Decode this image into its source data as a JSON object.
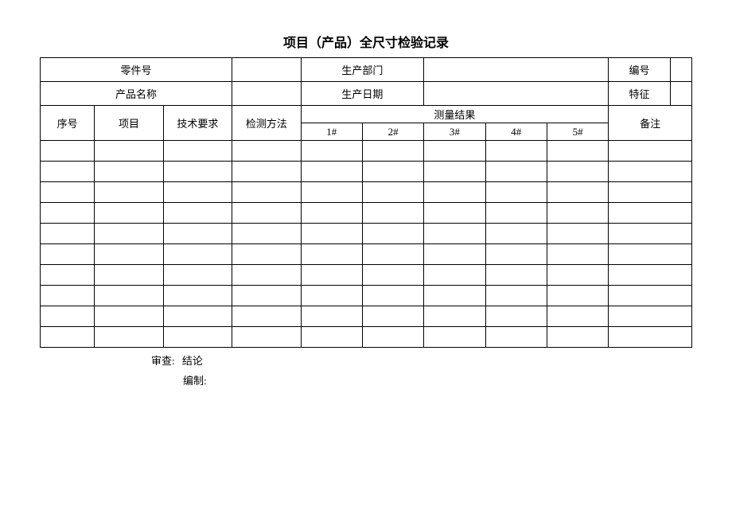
{
  "title": "项目（产品）全尺寸检验记录",
  "header": {
    "part_no_label": "零件号",
    "part_no_value": "",
    "dept_label": "生产部门",
    "dept_value": "",
    "doc_no_label": "编号",
    "doc_no_value": "",
    "product_name_label": "产品名称",
    "product_name_value": "",
    "date_label": "生产日期",
    "date_value": "",
    "feature_label": "特征",
    "feature_value": ""
  },
  "columns": {
    "seq": "序号",
    "item": "项目",
    "tech_req": "技术要求",
    "test_method": "检测方法",
    "measure_result": "测量结果",
    "m1": "1#",
    "m2": "2#",
    "m3": "3#",
    "m4": "4#",
    "m5": "5#",
    "remark": "备注"
  },
  "rows": [
    {
      "seq": "",
      "item": "",
      "tech": "",
      "method": "",
      "r1": "",
      "r2": "",
      "r3": "",
      "r4": "",
      "r5": "",
      "remark": ""
    },
    {
      "seq": "",
      "item": "",
      "tech": "",
      "method": "",
      "r1": "",
      "r2": "",
      "r3": "",
      "r4": "",
      "r5": "",
      "remark": ""
    },
    {
      "seq": "",
      "item": "",
      "tech": "",
      "method": "",
      "r1": "",
      "r2": "",
      "r3": "",
      "r4": "",
      "r5": "",
      "remark": ""
    },
    {
      "seq": "",
      "item": "",
      "tech": "",
      "method": "",
      "r1": "",
      "r2": "",
      "r3": "",
      "r4": "",
      "r5": "",
      "remark": ""
    },
    {
      "seq": "",
      "item": "",
      "tech": "",
      "method": "",
      "r1": "",
      "r2": "",
      "r3": "",
      "r4": "",
      "r5": "",
      "remark": ""
    },
    {
      "seq": "",
      "item": "",
      "tech": "",
      "method": "",
      "r1": "",
      "r2": "",
      "r3": "",
      "r4": "",
      "r5": "",
      "remark": ""
    },
    {
      "seq": "",
      "item": "",
      "tech": "",
      "method": "",
      "r1": "",
      "r2": "",
      "r3": "",
      "r4": "",
      "r5": "",
      "remark": ""
    },
    {
      "seq": "",
      "item": "",
      "tech": "",
      "method": "",
      "r1": "",
      "r2": "",
      "r3": "",
      "r4": "",
      "r5": "",
      "remark": ""
    },
    {
      "seq": "",
      "item": "",
      "tech": "",
      "method": "",
      "r1": "",
      "r2": "",
      "r3": "",
      "r4": "",
      "r5": "",
      "remark": ""
    },
    {
      "seq": "",
      "item": "",
      "tech": "",
      "method": "",
      "r1": "",
      "r2": "",
      "r3": "",
      "r4": "",
      "r5": "",
      "remark": ""
    }
  ],
  "footer": {
    "review_label": "审查:",
    "conclusion_label": "结论",
    "compiled_label": "编制:"
  },
  "style": {
    "border_color": "#000000",
    "background_color": "#ffffff",
    "font_family": "SimSun",
    "title_fontsize": 16,
    "cell_fontsize": 13,
    "col_widths_pct": [
      7.5,
      9.5,
      9.5,
      9.5,
      8.5,
      8.5,
      8.5,
      8.5,
      8.5,
      10
    ],
    "header_col_widths": {
      "label_span": 2,
      "value_span": 2
    }
  }
}
